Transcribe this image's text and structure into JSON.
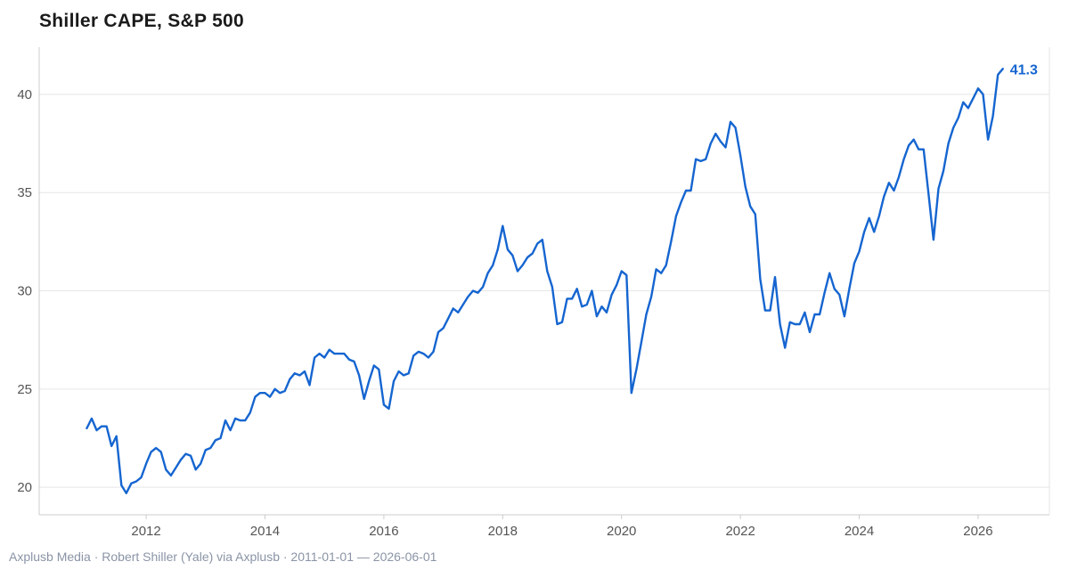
{
  "header": {
    "title": "Shiller CAPE, S&P 500"
  },
  "footer": {
    "source": "Axplusb Media · Robert Shiller (Yale) via Axplusb · 2011-01-01 — 2026-06-01"
  },
  "colors": {
    "line": "#1565d0",
    "grid": "#e6e6e6",
    "axis": "#cccccc"
  },
  "chart_data": {
    "type": "line",
    "title": "Shiller CAPE, S&P 500",
    "xlabel": "",
    "ylabel": "",
    "xlim": [
      2010.2,
      2027.2
    ],
    "ylim": [
      18.6,
      42.4
    ],
    "x_ticks": [
      2012,
      2014,
      2016,
      2018,
      2020,
      2022,
      2024,
      2026
    ],
    "x_tick_labels": [
      "2012",
      "2014",
      "2016",
      "2018",
      "2020",
      "2022",
      "2024",
      "2026"
    ],
    "y_ticks": [
      20,
      25,
      30,
      35,
      40
    ],
    "y_tick_labels": [
      "20",
      "25",
      "30",
      "35",
      "40"
    ],
    "grid": "horizontal",
    "last_value_label": "41.3",
    "x_start": "2011-01",
    "x_end": "2026-06",
    "values": [
      23.0,
      23.5,
      22.9,
      23.1,
      23.1,
      22.1,
      22.6,
      20.1,
      19.7,
      20.2,
      20.3,
      20.5,
      21.2,
      21.8,
      22.0,
      21.8,
      20.9,
      20.6,
      21.0,
      21.4,
      21.7,
      21.6,
      20.9,
      21.2,
      21.9,
      22.0,
      22.4,
      22.5,
      23.4,
      22.9,
      23.5,
      23.4,
      23.4,
      23.8,
      24.6,
      24.8,
      24.8,
      24.6,
      25.0,
      24.8,
      24.9,
      25.5,
      25.8,
      25.7,
      25.9,
      25.2,
      26.6,
      26.8,
      26.6,
      27.0,
      26.8,
      26.8,
      26.8,
      26.5,
      26.4,
      25.7,
      24.5,
      25.4,
      26.2,
      26.0,
      24.2,
      24.0,
      25.4,
      25.9,
      25.7,
      25.8,
      26.7,
      26.9,
      26.8,
      26.6,
      26.9,
      27.9,
      28.1,
      28.6,
      29.1,
      28.9,
      29.3,
      29.7,
      30.0,
      29.9,
      30.2,
      30.9,
      31.3,
      32.1,
      33.3,
      32.1,
      31.8,
      31.0,
      31.3,
      31.7,
      31.9,
      32.4,
      32.6,
      31.0,
      30.2,
      28.3,
      28.4,
      29.6,
      29.6,
      30.1,
      29.2,
      29.3,
      30.0,
      28.7,
      29.2,
      28.9,
      29.8,
      30.3,
      31.0,
      30.8,
      24.8,
      26.0,
      27.4,
      28.8,
      29.7,
      31.1,
      30.9,
      31.3,
      32.5,
      33.8,
      34.5,
      35.1,
      35.1,
      36.7,
      36.6,
      36.7,
      37.5,
      38.0,
      37.6,
      37.3,
      38.6,
      38.3,
      36.9,
      35.3,
      34.3,
      33.9,
      30.6,
      29.0,
      29.0,
      30.7,
      28.3,
      27.1,
      28.4,
      28.3,
      28.3,
      28.9,
      27.9,
      28.8,
      28.8,
      29.9,
      30.9,
      30.1,
      29.8,
      28.7,
      30.1,
      31.4,
      32.0,
      33.0,
      33.7,
      33.0,
      33.8,
      34.8,
      35.5,
      35.1,
      35.8,
      36.7,
      37.4,
      37.7,
      37.2,
      37.2,
      34.9,
      32.6,
      35.2,
      36.1,
      37.5,
      38.3,
      38.8,
      39.6,
      39.3,
      39.8,
      40.3,
      40.0,
      37.7,
      38.9,
      41.0,
      41.3
    ]
  }
}
